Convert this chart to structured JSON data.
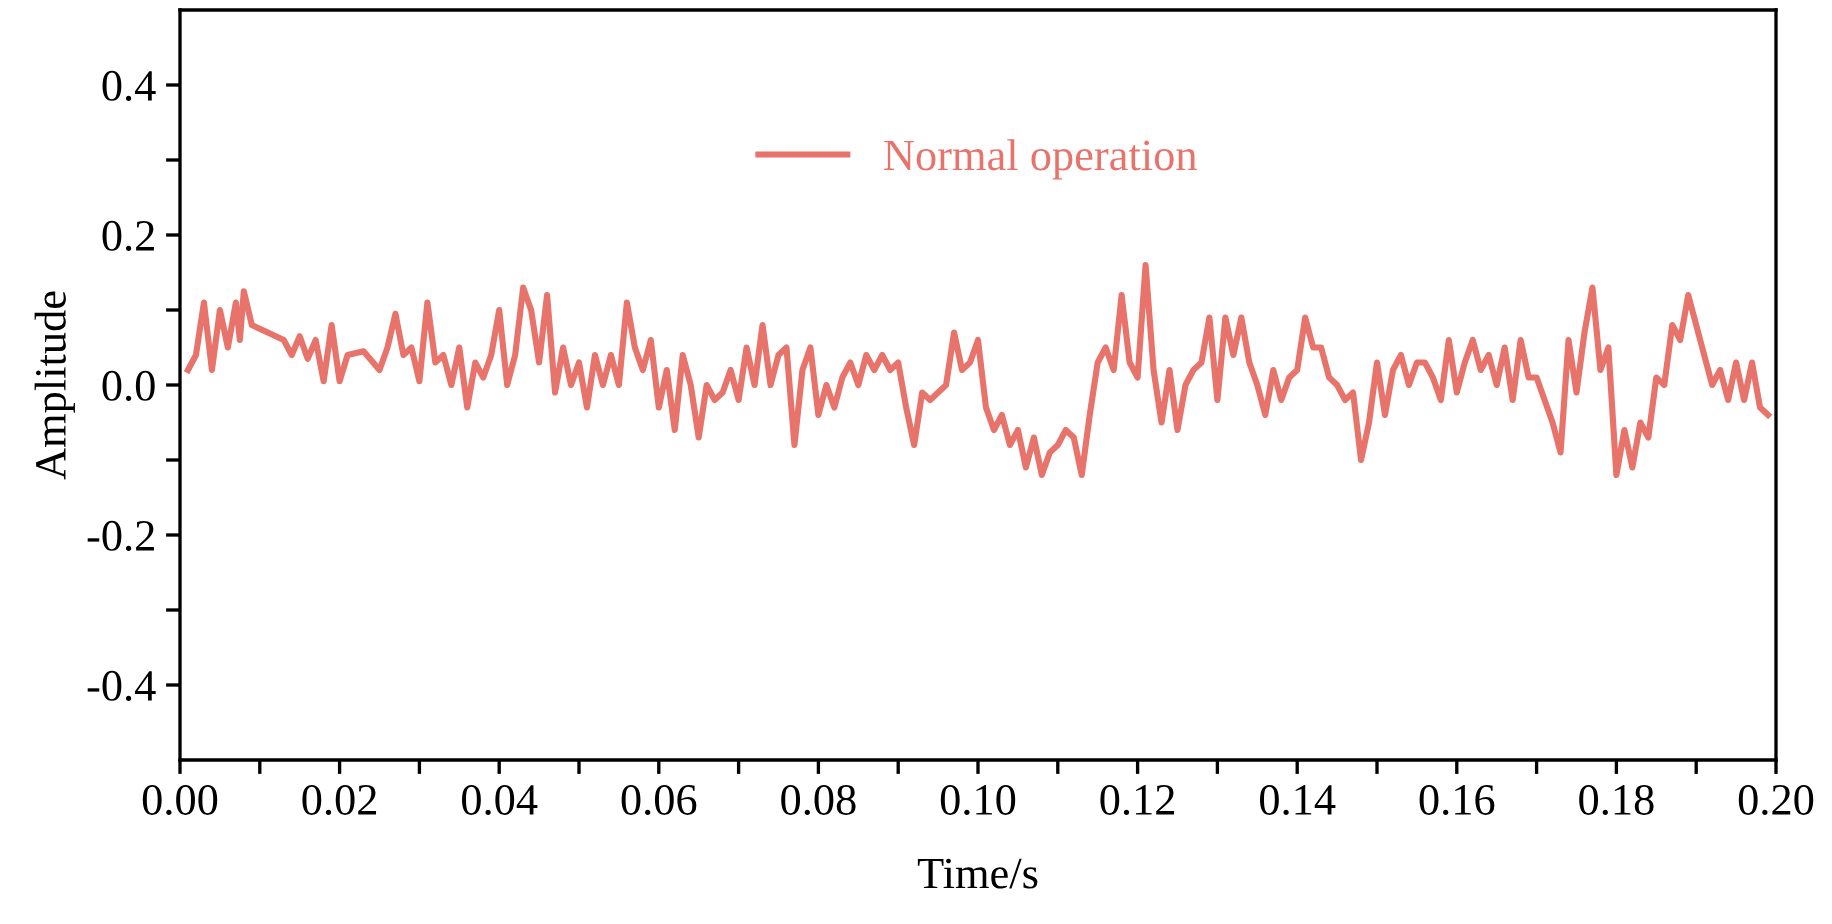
{
  "chart_data": {
    "type": "line",
    "xlabel": "Time/s",
    "ylabel": "Amplitude",
    "legend": "top",
    "grid": false,
    "marker": "none",
    "line_style": "solid",
    "xlim": [
      0,
      0.2
    ],
    "ylim": [
      -0.5,
      0.5
    ],
    "xticks": [
      {
        "value": 0,
        "label": "0.00"
      },
      {
        "value": 0.01,
        "label": null
      },
      {
        "value": 0.02,
        "label": "0.02"
      },
      {
        "value": 0.03,
        "label": null
      },
      {
        "value": 0.04,
        "label": "0.04"
      },
      {
        "value": 0.05,
        "label": null
      },
      {
        "value": 0.06,
        "label": "0.06"
      },
      {
        "value": 0.07,
        "label": null
      },
      {
        "value": 0.08,
        "label": "0.08"
      },
      {
        "value": 0.09,
        "label": null
      },
      {
        "value": 0.1,
        "label": "0.10"
      },
      {
        "value": 0.11,
        "label": null
      },
      {
        "value": 0.12,
        "label": "0.12"
      },
      {
        "value": 0.13,
        "label": null
      },
      {
        "value": 0.14,
        "label": "0.14"
      },
      {
        "value": 0.15,
        "label": null
      },
      {
        "value": 0.16,
        "label": "0.16"
      },
      {
        "value": 0.17,
        "label": null
      },
      {
        "value": 0.18,
        "label": "0.18"
      },
      {
        "value": 0.19,
        "label": null
      },
      {
        "value": 0.2,
        "label": "0.20"
      }
    ],
    "yticks": [
      {
        "value": -0.4,
        "label": "-0.4"
      },
      {
        "value": -0.3,
        "label": null
      },
      {
        "value": -0.2,
        "label": "-0.2"
      },
      {
        "value": -0.1,
        "label": null
      },
      {
        "value": 0,
        "label": "0.0"
      },
      {
        "value": 0.1,
        "label": null
      },
      {
        "value": 0.2,
        "label": "0.2"
      },
      {
        "value": 0.3,
        "label": null
      },
      {
        "value": 0.4,
        "label": "0.4"
      }
    ],
    "series": [
      {
        "name": "Normal operation",
        "color": "#e8736a",
        "x": [
          0.001,
          0.002,
          0.003,
          0.004,
          0.005,
          0.006,
          0.007,
          0.0075,
          0.008,
          0.009,
          0.011,
          0.013,
          0.014,
          0.015,
          0.016,
          0.017,
          0.018,
          0.019,
          0.02,
          0.021,
          0.023,
          0.025,
          0.026,
          0.027,
          0.028,
          0.029,
          0.03,
          0.031,
          0.032,
          0.033,
          0.034,
          0.035,
          0.036,
          0.037,
          0.038,
          0.039,
          0.04,
          0.041,
          0.042,
          0.043,
          0.044,
          0.045,
          0.046,
          0.047,
          0.048,
          0.049,
          0.05,
          0.051,
          0.052,
          0.053,
          0.054,
          0.055,
          0.056,
          0.057,
          0.058,
          0.059,
          0.06,
          0.061,
          0.062,
          0.063,
          0.064,
          0.065,
          0.066,
          0.067,
          0.068,
          0.069,
          0.07,
          0.071,
          0.072,
          0.073,
          0.074,
          0.075,
          0.076,
          0.077,
          0.078,
          0.079,
          0.08,
          0.081,
          0.082,
          0.083,
          0.084,
          0.085,
          0.086,
          0.087,
          0.088,
          0.089,
          0.09,
          0.091,
          0.092,
          0.093,
          0.094,
          0.096,
          0.097,
          0.098,
          0.099,
          0.1,
          0.101,
          0.102,
          0.103,
          0.104,
          0.105,
          0.106,
          0.107,
          0.108,
          0.109,
          0.11,
          0.111,
          0.112,
          0.113,
          0.114,
          0.115,
          0.116,
          0.117,
          0.118,
          0.119,
          0.12,
          0.121,
          0.122,
          0.123,
          0.124,
          0.125,
          0.126,
          0.127,
          0.128,
          0.129,
          0.13,
          0.131,
          0.132,
          0.133,
          0.134,
          0.135,
          0.136,
          0.137,
          0.138,
          0.139,
          0.14,
          0.141,
          0.142,
          0.143,
          0.144,
          0.145,
          0.146,
          0.147,
          0.148,
          0.149,
          0.15,
          0.151,
          0.152,
          0.153,
          0.154,
          0.155,
          0.156,
          0.157,
          0.158,
          0.159,
          0.16,
          0.161,
          0.162,
          0.163,
          0.164,
          0.165,
          0.166,
          0.167,
          0.168,
          0.169,
          0.17,
          0.171,
          0.172,
          0.173,
          0.174,
          0.175,
          0.176,
          0.177,
          0.178,
          0.179,
          0.18,
          0.181,
          0.182,
          0.183,
          0.184,
          0.185,
          0.186,
          0.187,
          0.188,
          0.189,
          0.19,
          0.191,
          0.192,
          0.193,
          0.194,
          0.195,
          0.196,
          0.197,
          0.198,
          0.199
        ],
        "values": [
          0.02,
          0.04,
          0.11,
          0.02,
          0.1,
          0.05,
          0.11,
          0.06,
          0.125,
          0.08,
          0.07,
          0.06,
          0.04,
          0.065,
          0.035,
          0.06,
          0.005,
          0.08,
          0.005,
          0.04,
          0.045,
          0.02,
          0.05,
          0.095,
          0.04,
          0.05,
          0.005,
          0.11,
          0.03,
          0.04,
          0.0,
          0.05,
          -0.03,
          0.03,
          0.01,
          0.04,
          0.1,
          0.0,
          0.04,
          0.13,
          0.1,
          0.03,
          0.12,
          -0.01,
          0.05,
          0.0,
          0.03,
          -0.03,
          0.04,
          0.0,
          0.04,
          0.0,
          0.11,
          0.05,
          0.02,
          0.06,
          -0.03,
          0.02,
          -0.06,
          0.04,
          0.0,
          -0.07,
          0.0,
          -0.02,
          -0.01,
          0.02,
          -0.02,
          0.05,
          0.0,
          0.08,
          0.0,
          0.04,
          0.05,
          -0.08,
          0.02,
          0.05,
          -0.04,
          0.0,
          -0.03,
          0.01,
          0.03,
          0.0,
          0.04,
          0.02,
          0.04,
          0.02,
          0.03,
          -0.03,
          -0.08,
          -0.01,
          -0.02,
          0.0,
          0.07,
          0.02,
          0.03,
          0.06,
          -0.03,
          -0.06,
          -0.04,
          -0.08,
          -0.06,
          -0.11,
          -0.07,
          -0.12,
          -0.09,
          -0.08,
          -0.06,
          -0.07,
          -0.12,
          -0.04,
          0.03,
          0.05,
          0.02,
          0.12,
          0.03,
          0.01,
          0.16,
          0.02,
          -0.05,
          0.02,
          -0.06,
          0.0,
          0.02,
          0.03,
          0.09,
          -0.02,
          0.09,
          0.04,
          0.09,
          0.03,
          0.0,
          -0.04,
          0.02,
          -0.02,
          0.01,
          0.02,
          0.09,
          0.05,
          0.05,
          0.01,
          0.0,
          -0.02,
          -0.01,
          -0.1,
          -0.05,
          0.03,
          -0.04,
          0.02,
          0.04,
          0.0,
          0.03,
          0.03,
          0.01,
          -0.02,
          0.06,
          -0.01,
          0.03,
          0.06,
          0.02,
          0.04,
          0.0,
          0.05,
          -0.02,
          0.06,
          0.01,
          0.01,
          -0.02,
          -0.05,
          -0.09,
          0.06,
          -0.01,
          0.07,
          0.13,
          0.02,
          0.05,
          -0.12,
          -0.06,
          -0.11,
          -0.05,
          -0.07,
          0.01,
          0.0,
          0.08,
          0.06,
          0.12,
          0.08,
          0.04,
          0.0,
          0.02,
          -0.02,
          0.03,
          -0.02,
          0.03,
          -0.03,
          -0.04
        ]
      }
    ]
  }
}
